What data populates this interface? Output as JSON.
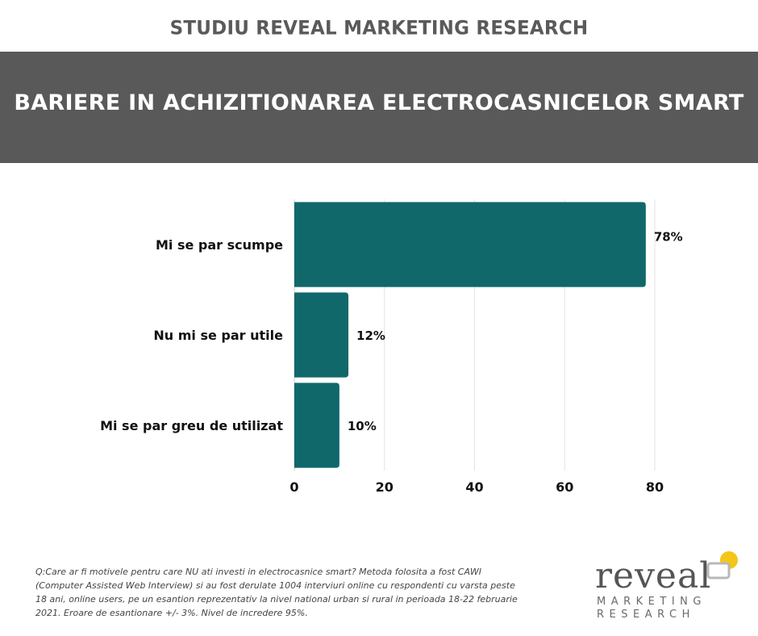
{
  "header": {
    "top_title": "STUDIU REVEAL MARKETING RESEARCH",
    "banner_title": "BARIERE IN ACHIZITIONAREA ELECTROCASNICELOR SMART",
    "banner_color": "#595959"
  },
  "chart_data": {
    "type": "bar",
    "orientation": "horizontal",
    "categories": [
      "Mi se par scumpe",
      "Nu mi se par utile",
      "Mi se par greu de utilizat"
    ],
    "values": [
      78,
      12,
      10
    ],
    "value_labels": [
      "78%",
      "12%",
      "10%"
    ],
    "xlim": [
      0,
      80
    ],
    "xticks": [
      0,
      20,
      40,
      60,
      80
    ],
    "grid": true,
    "bar_color": "#10686a"
  },
  "footnote": "Q:Care ar fi motivele pentru care NU ati investi in electrocasnice smart? Metoda folosita a fost CAWI (Computer Assisted Web Interview) si au fost derulate 1004 interviuri online cu respondenti cu varsta peste 18 ani, online users, pe un esantion reprezentativ la nivel national urban si rural in perioada 18-22 februarie 2021. Eroare de esantionare +/- 3%. Nivel de incredere 95%.",
  "logo": {
    "word": "reveal",
    "line1": "MARKETING",
    "line2": "RESEARCH",
    "accent_color": "#f5c518",
    "mark_color": "#b8b8b8"
  }
}
